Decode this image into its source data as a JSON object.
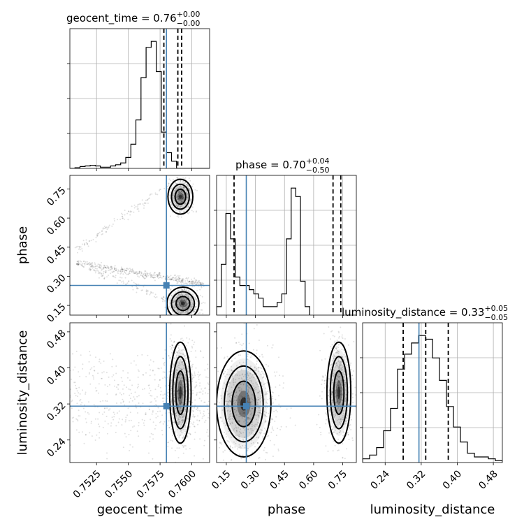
{
  "chart_data": {
    "type": "corner",
    "parameters": [
      "geocent_time",
      "phase",
      "luminosity_distance"
    ],
    "truth": {
      "geocent_time": 0.758,
      "phase": 0.253,
      "luminosity_distance": 0.315
    },
    "truth_color": "#4682b4",
    "hist_color": "#000000",
    "grid": true,
    "titles": [
      {
        "param": "geocent_time",
        "base": "geocent_time = 0.76",
        "sup": "+0.00",
        "sub": "−0.00"
      },
      {
        "param": "phase",
        "base": "phase = 0.70",
        "sup": "+0.04",
        "sub": "−0.50"
      },
      {
        "param": "luminosity_distance",
        "base": "luminosity_distance = 0.33",
        "sup": "+0.05",
        "sub": "−0.05"
      }
    ],
    "axes": {
      "geocent_time": {
        "label": "geocent_time",
        "range": [
          0.7504,
          0.7614
        ],
        "ticks": [
          0.7525,
          0.755,
          0.7575,
          0.76
        ],
        "tick_labels": [
          "0.7525",
          "0.7550",
          "0.7575",
          "0.7600"
        ]
      },
      "phase": {
        "label": "phase",
        "range": [
          0.1,
          0.82
        ],
        "ticks": [
          0.15,
          0.3,
          0.45,
          0.6,
          0.75
        ],
        "tick_labels": [
          "0.15",
          "0.30",
          "0.45",
          "0.60",
          "0.75"
        ]
      },
      "luminosity_distance": {
        "label": "luminosity_distance",
        "range": [
          0.19,
          0.5
        ],
        "ticks": [
          0.24,
          0.32,
          0.4,
          0.48
        ],
        "tick_labels": [
          "0.24",
          "0.32",
          "0.40",
          "0.48"
        ]
      }
    },
    "histograms": {
      "geocent_time": {
        "bin_start": 0.7504,
        "bin_width": 0.0004,
        "counts": [
          0,
          1,
          3,
          4,
          5,
          4,
          2,
          2,
          4,
          6,
          9,
          18,
          40,
          80,
          150,
          200,
          210,
          160,
          60,
          26,
          12,
          0,
          0,
          0,
          0,
          0,
          0,
          0
        ],
        "quantiles": [
          0.7578,
          0.7589,
          0.7592
        ]
      },
      "phase": {
        "bin_start": 0.1,
        "bin_width": 0.024,
        "counts": [
          2,
          12,
          24,
          18,
          9,
          7,
          7,
          6,
          5,
          4,
          2,
          2,
          2,
          3,
          5,
          18,
          30,
          28,
          8,
          2
        ],
        "quantiles": [
          0.19,
          0.7,
          0.74
        ]
      },
      "luminosity_distance": {
        "bin_start": 0.19,
        "bin_width": 0.0155,
        "counts": [
          2,
          4,
          8,
          17,
          29,
          50,
          58,
          64,
          68,
          66,
          56,
          44,
          30,
          19,
          11,
          5,
          3,
          3,
          2,
          1
        ],
        "quantiles": [
          0.28,
          0.33,
          0.38
        ]
      }
    },
    "scatter": [
      {
        "x": "geocent_time",
        "y": "phase",
        "pattern": "z-curve",
        "points": 1500
      },
      {
        "x": "geocent_time",
        "y": "luminosity_distance",
        "points": 1100
      },
      {
        "x": "phase",
        "y": "luminosity_distance",
        "points": 1400
      }
    ],
    "contours_2d": [
      {
        "x": "geocent_time",
        "y": "phase",
        "blobs": [
          {
            "cx": 0.7591,
            "cy": 0.71,
            "sx": 0.00035,
            "sy": 0.032
          },
          {
            "cx": 0.7593,
            "cy": 0.16,
            "sx": 0.00045,
            "sy": 0.03
          }
        ]
      },
      {
        "x": "geocent_time",
        "y": "luminosity_distance",
        "blobs": [
          {
            "cx": 0.7591,
            "cy": 0.345,
            "sx": 0.0003,
            "sy": 0.04
          }
        ]
      },
      {
        "x": "phase",
        "y": "luminosity_distance",
        "blobs": [
          {
            "cx": 0.24,
            "cy": 0.32,
            "sx": 0.05,
            "sy": 0.042
          },
          {
            "cx": 0.73,
            "cy": 0.345,
            "sx": 0.022,
            "sy": 0.04
          }
        ]
      }
    ]
  }
}
